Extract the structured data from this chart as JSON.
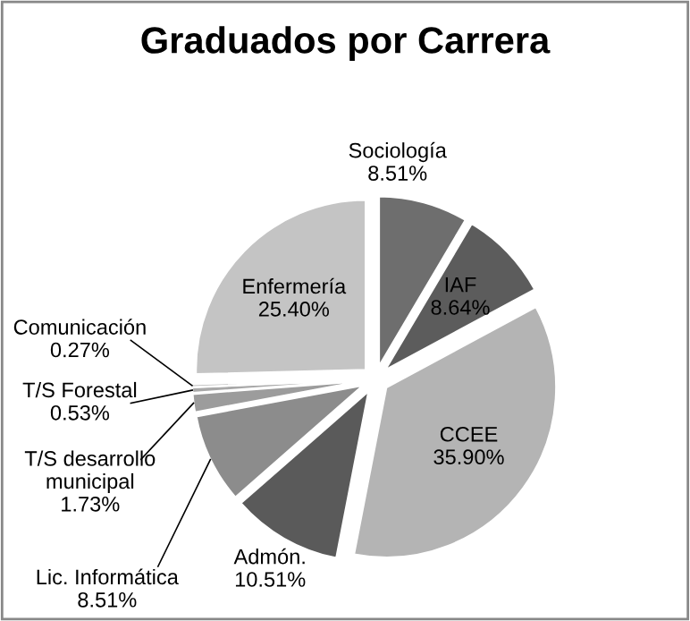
{
  "chart_data": {
    "type": "pie",
    "title": "Graduados por Carrera",
    "categories": [
      "Sociología",
      "IAF",
      "CCEE",
      "Admón.",
      "Lic. Informática",
      "T/S desarrollo municipal",
      "T/S Forestal",
      "Comunicación",
      "Enfermería"
    ],
    "values": [
      8.51,
      8.64,
      35.9,
      10.51,
      8.51,
      1.73,
      0.53,
      0.27,
      25.4
    ],
    "colors": [
      "#6e6e6e",
      "#5c5c5c",
      "#b4b4b4",
      "#5a5a5a",
      "#8c8c8c",
      "#9c9c9c",
      "#a8a8a8",
      "#bdbdbd",
      "#c4c4c4"
    ],
    "value_labels": [
      "8.51%",
      "8.64%",
      "35.90%",
      "10.51%",
      "8.51%",
      "1.73%",
      "0.53%",
      "0.27%",
      "25.40%"
    ],
    "legend": false
  }
}
